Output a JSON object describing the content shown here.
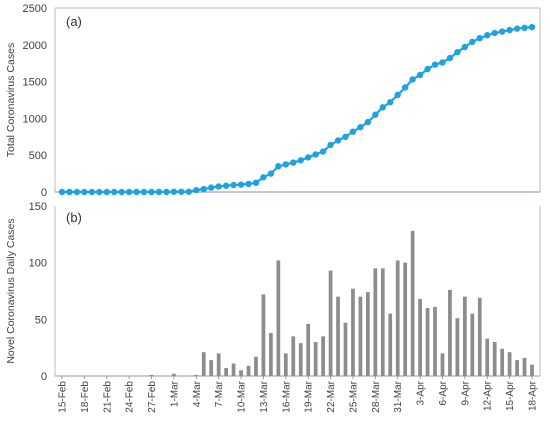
{
  "chart_data": [
    {
      "type": "line",
      "panel_label": "(a)",
      "ylabel": "Total Coronavirus Cases",
      "ylim": [
        0,
        2500
      ],
      "yticks": [
        0,
        500,
        1000,
        1500,
        2000,
        2500
      ],
      "color": "#1fa3e0",
      "grid": false,
      "x": [
        "15-Feb",
        "16-Feb",
        "17-Feb",
        "18-Feb",
        "19-Feb",
        "20-Feb",
        "21-Feb",
        "22-Feb",
        "23-Feb",
        "24-Feb",
        "25-Feb",
        "26-Feb",
        "27-Feb",
        "28-Feb",
        "29-Feb",
        "1-Mar",
        "2-Mar",
        "3-Mar",
        "4-Mar",
        "5-Mar",
        "6-Mar",
        "7-Mar",
        "8-Mar",
        "9-Mar",
        "10-Mar",
        "11-Mar",
        "12-Mar",
        "13-Mar",
        "14-Mar",
        "15-Mar",
        "16-Mar",
        "17-Mar",
        "18-Mar",
        "19-Mar",
        "20-Mar",
        "21-Mar",
        "22-Mar",
        "23-Mar",
        "24-Mar",
        "25-Mar",
        "26-Mar",
        "27-Mar",
        "28-Mar",
        "29-Mar",
        "30-Mar",
        "31-Mar",
        "1-Apr",
        "2-Apr",
        "3-Apr",
        "4-Apr",
        "5-Apr",
        "6-Apr",
        "7-Apr",
        "8-Apr",
        "9-Apr",
        "10-Apr",
        "11-Apr",
        "12-Apr",
        "13-Apr",
        "14-Apr",
        "15-Apr",
        "16-Apr",
        "17-Apr",
        "18-Apr"
      ],
      "values": [
        0,
        0,
        0,
        0,
        0,
        0,
        0,
        0,
        0,
        0,
        0,
        0,
        1,
        1,
        1,
        3,
        3,
        4,
        25,
        40,
        60,
        75,
        85,
        95,
        100,
        110,
        125,
        200,
        250,
        350,
        375,
        400,
        430,
        470,
        510,
        550,
        640,
        700,
        750,
        820,
        880,
        950,
        1050,
        1150,
        1220,
        1320,
        1420,
        1530,
        1590,
        1670,
        1730,
        1760,
        1820,
        1900,
        1970,
        2040,
        2090,
        2130,
        2160,
        2180,
        2200,
        2220,
        2230,
        2240
      ]
    },
    {
      "type": "bar",
      "panel_label": "(b)",
      "ylabel": "Novel Coronavirus Daily Cases",
      "ylim": [
        0,
        150
      ],
      "yticks": [
        0,
        50,
        100,
        150
      ],
      "color": "#8c8c8c",
      "grid": false,
      "categories": [
        "15-Feb",
        "16-Feb",
        "17-Feb",
        "18-Feb",
        "19-Feb",
        "20-Feb",
        "21-Feb",
        "22-Feb",
        "23-Feb",
        "24-Feb",
        "25-Feb",
        "26-Feb",
        "27-Feb",
        "28-Feb",
        "29-Feb",
        "1-Mar",
        "2-Mar",
        "3-Mar",
        "4-Mar",
        "5-Mar",
        "6-Mar",
        "7-Mar",
        "8-Mar",
        "9-Mar",
        "10-Mar",
        "11-Mar",
        "12-Mar",
        "13-Mar",
        "14-Mar",
        "15-Mar",
        "16-Mar",
        "17-Mar",
        "18-Mar",
        "19-Mar",
        "20-Mar",
        "21-Mar",
        "22-Mar",
        "23-Mar",
        "24-Mar",
        "25-Mar",
        "26-Mar",
        "27-Mar",
        "28-Mar",
        "29-Mar",
        "30-Mar",
        "31-Mar",
        "1-Apr",
        "2-Apr",
        "3-Apr",
        "4-Apr",
        "5-Apr",
        "6-Apr",
        "7-Apr",
        "8-Apr",
        "9-Apr",
        "10-Apr",
        "11-Apr",
        "12-Apr",
        "13-Apr",
        "14-Apr",
        "15-Apr",
        "16-Apr",
        "17-Apr",
        "18-Apr"
      ],
      "values": [
        0,
        0,
        0,
        0,
        0,
        0,
        0,
        0,
        0,
        0,
        0,
        0,
        1,
        0,
        0,
        2,
        0,
        0,
        1,
        21,
        14,
        20,
        7,
        11,
        5,
        9,
        17,
        72,
        38,
        102,
        20,
        35,
        29,
        46,
        30,
        35,
        93,
        70,
        47,
        77,
        70,
        74,
        95,
        95,
        55,
        102,
        100,
        128,
        68,
        60,
        61,
        20,
        76,
        51,
        70,
        55,
        69,
        33,
        30,
        24,
        21,
        14,
        16,
        10
      ],
      "xticks": [
        "15-Feb",
        "18-Feb",
        "21-Feb",
        "24-Feb",
        "27-Feb",
        "1-Mar",
        "4-Mar",
        "7-Mar",
        "10-Mar",
        "13-Mar",
        "16-Mar",
        "19-Mar",
        "22-Mar",
        "25-Mar",
        "28-Mar",
        "31-Mar",
        "3-Apr",
        "6-Apr",
        "9-Apr",
        "12-Apr",
        "15-Apr",
        "18-Apr"
      ]
    }
  ]
}
